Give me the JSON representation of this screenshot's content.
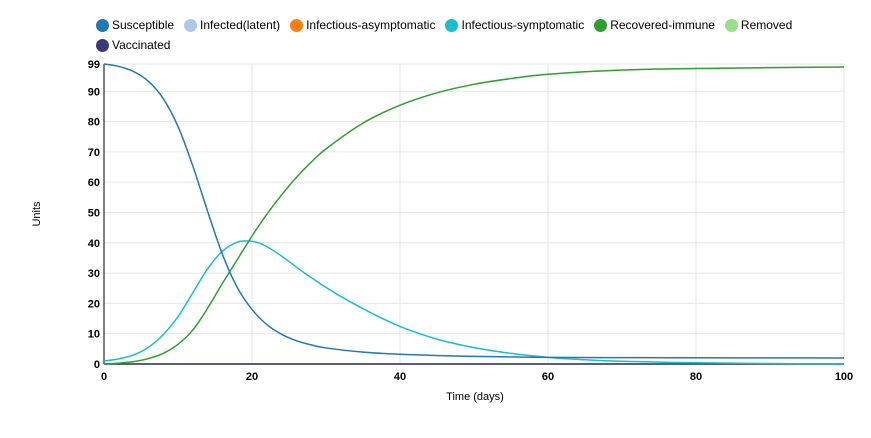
{
  "chart_data": {
    "type": "line",
    "title": "",
    "xlabel": "Time (days)",
    "ylabel": "Units",
    "xlim": [
      0,
      100
    ],
    "ylim": [
      0,
      99
    ],
    "x_ticks": [
      0,
      20,
      40,
      60,
      80,
      100
    ],
    "y_ticks": [
      0,
      10,
      20,
      30,
      40,
      50,
      60,
      70,
      80,
      90,
      99
    ],
    "grid": true,
    "legend_position": "top",
    "series": [
      {
        "name": "Susceptible",
        "color": "#2278b5",
        "x": [
          0,
          2,
          4,
          6,
          8,
          10,
          12,
          14,
          16,
          18,
          20,
          22,
          24,
          26,
          28,
          30,
          35,
          40,
          45,
          50,
          60,
          70,
          80,
          90,
          100
        ],
        "y": [
          99,
          98.2,
          96.5,
          93.3,
          87.6,
          78.4,
          65.4,
          50.4,
          36.2,
          25.3,
          18,
          13,
          9.8,
          7.7,
          6.3,
          5.3,
          3.9,
          3.2,
          2.8,
          2.5,
          2.2,
          2.1,
          2.05,
          2.02,
          2
        ]
      },
      {
        "name": "Infected(latent)",
        "color": "#aec7e8",
        "x": [
          0,
          100
        ],
        "y": [
          0,
          0
        ]
      },
      {
        "name": "Infectious-asymptomatic",
        "color": "#ff7f0e",
        "x": [
          0,
          100
        ],
        "y": [
          0,
          0
        ]
      },
      {
        "name": "Infectious-symptomatic",
        "color": "#17becf",
        "x": [
          0,
          2,
          4,
          6,
          8,
          10,
          12,
          14,
          16,
          18,
          19.5,
          21,
          23,
          25,
          27,
          30,
          33,
          36,
          40,
          45,
          50,
          55,
          60,
          65,
          70,
          80,
          90,
          100
        ],
        "y": [
          1,
          1.7,
          3,
          5.5,
          9.7,
          15.6,
          23.5,
          31.4,
          37.2,
          40.2,
          40.6,
          39.9,
          37.3,
          33.8,
          30.2,
          25.3,
          20.9,
          17,
          12.4,
          8.2,
          5.4,
          3.5,
          2.2,
          1.4,
          0.9,
          0.4,
          0.15,
          0.05
        ]
      },
      {
        "name": "Recovered-immune",
        "color": "#2ca02c",
        "x": [
          0,
          2,
          4,
          6,
          8,
          10,
          12,
          14,
          16,
          18,
          20,
          22,
          24,
          26,
          28,
          30,
          35,
          40,
          45,
          50,
          55,
          60,
          70,
          80,
          90,
          100
        ],
        "y": [
          0,
          0.3,
          0.8,
          1.8,
          3.5,
          6.5,
          11.2,
          18.4,
          26.6,
          34.4,
          42.2,
          49.4,
          55.8,
          61.6,
          66.6,
          71,
          79.5,
          85.4,
          89.5,
          92.3,
          94.2,
          95.6,
          97,
          97.5,
          97.8,
          98
        ]
      },
      {
        "name": "Removed",
        "color": "#98df8a",
        "x": [
          0,
          100
        ],
        "y": [
          0,
          0
        ]
      },
      {
        "name": "Vaccinated",
        "color": "#393b79",
        "x": [
          0,
          100
        ],
        "y": [
          0,
          0
        ]
      }
    ]
  }
}
